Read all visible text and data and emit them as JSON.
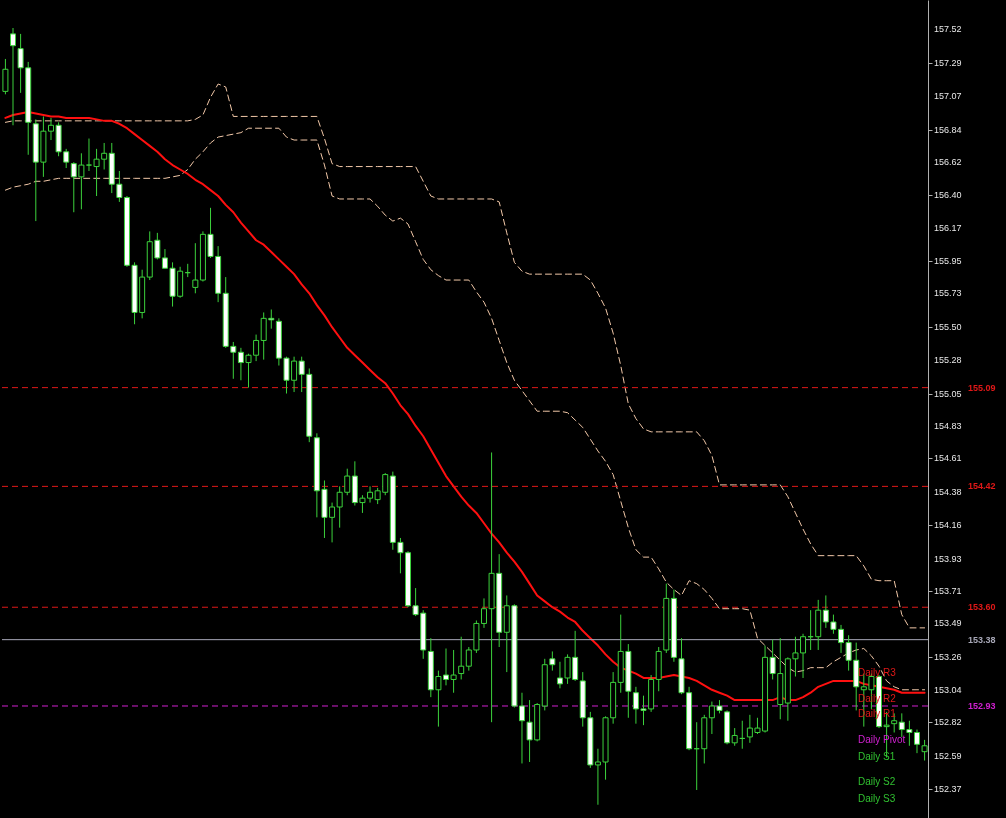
{
  "chart_data": {
    "type": "candlestick",
    "categories": [
      null,
      null,
      null,
      null,
      null,
      null,
      null,
      null,
      null,
      null,
      null,
      null,
      null,
      null,
      null,
      null,
      null,
      null,
      null,
      null,
      null,
      null,
      null,
      null,
      null,
      null,
      null,
      null,
      null,
      null,
      null,
      null,
      null,
      null,
      null,
      null,
      null,
      null,
      null,
      null,
      null,
      null,
      null,
      null,
      null,
      null,
      null,
      null,
      null,
      null,
      null,
      null,
      null,
      null,
      null,
      null,
      null,
      null,
      null,
      null,
      null,
      null,
      null,
      null,
      null,
      null,
      null,
      null,
      null,
      null,
      null,
      null,
      null,
      null,
      null,
      null,
      null,
      null,
      null,
      null,
      null,
      null,
      null,
      null,
      null,
      null,
      null,
      null,
      null,
      null,
      null,
      null,
      null,
      null,
      null,
      null,
      null,
      null,
      null,
      null,
      null,
      null,
      null,
      null,
      null,
      null,
      null,
      null,
      null,
      null,
      null,
      null,
      null,
      null,
      null,
      null,
      null,
      null,
      null,
      null,
      null,
      null
    ],
    "tick_labels": "y",
    "color": "#3cd23c",
    "ohlc": [
      [
        157.1,
        157.32,
        157.08,
        157.25
      ],
      [
        157.49,
        157.53,
        156.87,
        157.41
      ],
      [
        157.39,
        157.49,
        157.09,
        157.26
      ],
      [
        157.26,
        157.3,
        156.67,
        156.89
      ],
      [
        156.88,
        156.91,
        156.22,
        156.62
      ],
      [
        156.62,
        156.93,
        156.52,
        156.83
      ],
      [
        156.83,
        156.92,
        156.77,
        156.87
      ],
      [
        156.87,
        156.89,
        156.66,
        156.69
      ],
      [
        156.69,
        156.71,
        156.58,
        156.62
      ],
      [
        156.61,
        156.62,
        156.28,
        156.52
      ],
      [
        156.52,
        156.68,
        156.3,
        156.6
      ],
      [
        156.6,
        156.78,
        156.56,
        156.6
      ],
      [
        156.59,
        156.71,
        156.39,
        156.64
      ],
      [
        156.64,
        156.75,
        156.57,
        156.68
      ],
      [
        156.68,
        156.75,
        156.41,
        156.47
      ],
      [
        156.47,
        156.56,
        156.35,
        156.38
      ],
      [
        156.38,
        156.39,
        155.91,
        155.92
      ],
      [
        155.92,
        155.94,
        155.52,
        155.6
      ],
      [
        155.6,
        155.89,
        155.56,
        155.84
      ],
      [
        155.84,
        156.15,
        155.82,
        156.08
      ],
      [
        156.09,
        156.14,
        155.96,
        155.97
      ],
      [
        155.97,
        156.03,
        155.9,
        155.9
      ],
      [
        155.9,
        155.94,
        155.64,
        155.71
      ],
      [
        155.71,
        155.91,
        155.7,
        155.88
      ],
      [
        155.87,
        155.93,
        155.84,
        155.87
      ],
      [
        155.77,
        156.07,
        155.73,
        155.82
      ],
      [
        155.82,
        156.15,
        155.81,
        156.13
      ],
      [
        156.13,
        156.31,
        155.97,
        155.98
      ],
      [
        155.98,
        156.05,
        155.67,
        155.73
      ],
      [
        155.73,
        155.84,
        155.36,
        155.37
      ],
      [
        155.37,
        155.4,
        155.15,
        155.33
      ],
      [
        155.33,
        155.36,
        155.14,
        155.26
      ],
      [
        155.26,
        155.32,
        155.09,
        155.31
      ],
      [
        155.31,
        155.45,
        155.27,
        155.41
      ],
      [
        155.41,
        155.6,
        155.28,
        155.56
      ],
      [
        155.56,
        155.62,
        155.49,
        155.55
      ],
      [
        155.54,
        155.56,
        155.24,
        155.29
      ],
      [
        155.29,
        155.3,
        155.05,
        155.14
      ],
      [
        155.14,
        155.3,
        155.06,
        155.27
      ],
      [
        155.27,
        155.3,
        155.06,
        155.18
      ],
      [
        155.18,
        155.22,
        154.72,
        154.76
      ],
      [
        154.75,
        154.78,
        154.21,
        154.39
      ],
      [
        154.4,
        154.46,
        154.07,
        154.21
      ],
      [
        154.21,
        154.31,
        154.04,
        154.28
      ],
      [
        154.28,
        154.42,
        154.14,
        154.38
      ],
      [
        154.38,
        154.54,
        154.36,
        154.49
      ],
      [
        154.49,
        154.59,
        154.29,
        154.31
      ],
      [
        154.31,
        154.36,
        154.24,
        154.34
      ],
      [
        154.34,
        154.42,
        154.31,
        154.38
      ],
      [
        154.33,
        154.41,
        154.3,
        154.39
      ],
      [
        154.38,
        154.51,
        154.36,
        154.5
      ],
      [
        154.49,
        154.52,
        153.99,
        154.04
      ],
      [
        154.04,
        154.07,
        153.83,
        153.97
      ],
      [
        153.97,
        153.98,
        153.6,
        153.61
      ],
      [
        153.61,
        153.73,
        153.54,
        153.55
      ],
      [
        153.56,
        153.58,
        153.25,
        153.31
      ],
      [
        153.3,
        153.39,
        152.99,
        153.04
      ],
      [
        153.04,
        153.17,
        152.79,
        153.13
      ],
      [
        153.14,
        153.32,
        153.07,
        153.11
      ],
      [
        153.11,
        153.31,
        153.02,
        153.14
      ],
      [
        153.15,
        153.4,
        153.11,
        153.2
      ],
      [
        153.2,
        153.33,
        153.17,
        153.31
      ],
      [
        153.31,
        153.51,
        153.29,
        153.49
      ],
      [
        153.49,
        153.66,
        153.46,
        153.59
      ],
      [
        153.59,
        154.65,
        152.82,
        153.83
      ],
      [
        153.83,
        153.96,
        153.33,
        153.43
      ],
      [
        153.43,
        153.68,
        153.16,
        153.61
      ],
      [
        153.61,
        153.62,
        152.92,
        152.93
      ],
      [
        152.93,
        153.02,
        152.54,
        152.83
      ],
      [
        152.82,
        152.97,
        152.55,
        152.7
      ],
      [
        152.7,
        152.95,
        152.69,
        152.94
      ],
      [
        152.93,
        153.25,
        152.9,
        153.21
      ],
      [
        153.25,
        153.3,
        153.17,
        153.21
      ],
      [
        153.12,
        153.23,
        153.05,
        153.08
      ],
      [
        153.12,
        153.28,
        153.08,
        153.26
      ],
      [
        153.26,
        153.44,
        153.1,
        153.11
      ],
      [
        153.1,
        153.16,
        152.79,
        152.85
      ],
      [
        152.85,
        152.89,
        152.51,
        152.53
      ],
      [
        152.53,
        152.64,
        152.26,
        152.55
      ],
      [
        152.55,
        152.86,
        152.43,
        152.85
      ],
      [
        152.85,
        153.16,
        152.81,
        153.09
      ],
      [
        153.09,
        153.55,
        153.02,
        153.3
      ],
      [
        153.3,
        153.35,
        152.85,
        153.03
      ],
      [
        153.02,
        153.06,
        152.81,
        152.91
      ],
      [
        152.91,
        153.0,
        152.8,
        152.9
      ],
      [
        152.91,
        153.14,
        152.89,
        153.11
      ],
      [
        153.11,
        153.33,
        153.03,
        153.3
      ],
      [
        153.31,
        153.76,
        153.29,
        153.66
      ],
      [
        153.66,
        153.72,
        153.23,
        153.26
      ],
      [
        153.25,
        153.39,
        153.01,
        153.02
      ],
      [
        153.02,
        153.06,
        152.63,
        152.64
      ],
      [
        152.64,
        152.82,
        152.36,
        152.64
      ],
      [
        152.64,
        152.87,
        152.54,
        152.85
      ],
      [
        152.85,
        152.96,
        152.74,
        152.93
      ],
      [
        152.93,
        152.97,
        152.88,
        152.9
      ],
      [
        152.89,
        152.9,
        152.67,
        152.68
      ],
      [
        152.68,
        152.78,
        152.66,
        152.73
      ],
      [
        152.71,
        152.83,
        152.64,
        152.71
      ],
      [
        152.72,
        152.87,
        152.68,
        152.78
      ],
      [
        152.75,
        152.85,
        152.74,
        152.78
      ],
      [
        152.76,
        153.34,
        152.75,
        153.26
      ],
      [
        153.26,
        153.38,
        153.11,
        153.15
      ],
      [
        152.94,
        153.39,
        152.84,
        153.15
      ],
      [
        152.95,
        153.26,
        152.83,
        153.25
      ],
      [
        153.25,
        153.4,
        153.13,
        153.29
      ],
      [
        153.29,
        153.42,
        153.12,
        153.4
      ],
      [
        153.4,
        153.58,
        153.31,
        153.4
      ],
      [
        153.4,
        153.65,
        153.31,
        153.58
      ],
      [
        153.58,
        153.68,
        153.46,
        153.5
      ],
      [
        153.5,
        153.55,
        153.42,
        153.45
      ],
      [
        153.45,
        153.48,
        153.29,
        153.36
      ],
      [
        153.36,
        153.41,
        153.17,
        153.24
      ],
      [
        153.24,
        153.36,
        152.9,
        153.06
      ],
      [
        153.04,
        153.15,
        152.79,
        153.06
      ],
      [
        153.04,
        153.15,
        152.91,
        153.13
      ],
      [
        153.13,
        153.14,
        152.78,
        152.79
      ],
      [
        152.79,
        152.89,
        152.58,
        152.8
      ],
      [
        152.81,
        152.88,
        152.75,
        152.83
      ],
      [
        152.82,
        152.88,
        152.72,
        152.77
      ],
      [
        152.77,
        152.83,
        152.66,
        152.75
      ],
      [
        152.75,
        152.77,
        152.61,
        152.67
      ],
      [
        152.62,
        152.7,
        152.56,
        152.66
      ]
    ],
    "series": [
      {
        "type": "line",
        "color": "#f2c8a8",
        "line_style": "dashed",
        "values": [
          156.89,
          156.9,
          156.9,
          156.9,
          156.9,
          156.9,
          156.9,
          156.9,
          156.9,
          156.9,
          156.9,
          156.9,
          156.9,
          156.9,
          156.9,
          156.9,
          156.9,
          156.9,
          156.9,
          156.9,
          156.9,
          156.9,
          156.9,
          156.9,
          156.9,
          156.91,
          156.94,
          157.06,
          157.15,
          157.13,
          156.93,
          156.93,
          156.93,
          156.93,
          156.93,
          156.93,
          156.93,
          156.93,
          156.93,
          156.93,
          156.93,
          156.93,
          156.78,
          156.61,
          156.59,
          156.59,
          156.59,
          156.59,
          156.59,
          156.59,
          156.59,
          156.59,
          156.59,
          156.59,
          156.59,
          156.49,
          156.39,
          156.37,
          156.37,
          156.37,
          156.37,
          156.37,
          156.37,
          156.37,
          156.37,
          156.35,
          156.14,
          155.94,
          155.88,
          155.86,
          155.86,
          155.86,
          155.86,
          155.86,
          155.86,
          155.86,
          155.86,
          155.82,
          155.73,
          155.63,
          155.46,
          155.24,
          154.98,
          154.88,
          154.81,
          154.79,
          154.79,
          154.79,
          154.79,
          154.79,
          154.79,
          154.79,
          154.73,
          154.63,
          154.43,
          154.43,
          154.43,
          154.43,
          154.43,
          154.43,
          154.43,
          154.43,
          154.43,
          154.35,
          154.24,
          154.13,
          154.03,
          153.95,
          153.95,
          153.95,
          153.95,
          153.95,
          153.95,
          153.88,
          153.79,
          153.78,
          153.78,
          153.78,
          153.55,
          153.46,
          153.46,
          153.46
        ]
      },
      {
        "type": "line",
        "color": "#f2c8a8",
        "line_style": "dashed",
        "values": [
          156.43,
          156.45,
          156.46,
          156.47,
          156.49,
          156.49,
          156.5,
          156.51,
          156.51,
          156.51,
          156.51,
          156.51,
          156.51,
          156.51,
          156.51,
          156.51,
          156.51,
          156.51,
          156.51,
          156.51,
          156.51,
          156.51,
          156.52,
          156.53,
          156.57,
          156.64,
          156.69,
          156.75,
          156.79,
          156.8,
          156.81,
          156.82,
          156.85,
          156.85,
          156.85,
          156.85,
          156.85,
          156.79,
          156.77,
          156.77,
          156.77,
          156.77,
          156.6,
          156.39,
          156.37,
          156.37,
          156.37,
          156.37,
          156.37,
          156.32,
          156.26,
          156.22,
          156.24,
          156.2,
          156.08,
          155.96,
          155.89,
          155.85,
          155.82,
          155.82,
          155.82,
          155.82,
          155.74,
          155.67,
          155.56,
          155.41,
          155.26,
          155.14,
          155.07,
          155.0,
          154.93,
          154.93,
          154.93,
          154.93,
          154.92,
          154.87,
          154.82,
          154.74,
          154.66,
          154.59,
          154.5,
          154.32,
          154.14,
          153.99,
          153.94,
          153.94,
          153.86,
          153.77,
          153.72,
          153.68,
          153.78,
          153.76,
          153.72,
          153.66,
          153.59,
          153.59,
          153.59,
          153.59,
          153.58,
          153.39,
          153.34,
          153.29,
          153.24,
          153.19,
          153.16,
          153.17,
          153.19,
          153.19,
          153.19,
          153.23,
          153.26,
          153.29,
          153.31,
          153.32,
          153.27,
          153.2,
          153.1,
          153.06,
          153.04,
          153.04,
          153.04,
          153.04
        ]
      },
      {
        "type": "line",
        "color": "#ff1010",
        "line_style": "solid",
        "values": [
          156.92,
          156.94,
          156.95,
          156.96,
          156.95,
          156.94,
          156.93,
          156.93,
          156.92,
          156.92,
          156.92,
          156.92,
          156.91,
          156.9,
          156.9,
          156.88,
          156.85,
          156.81,
          156.77,
          156.73,
          156.69,
          156.64,
          156.6,
          156.57,
          156.54,
          156.5,
          156.47,
          156.43,
          156.39,
          156.33,
          156.28,
          156.21,
          156.15,
          156.09,
          156.06,
          156.01,
          155.96,
          155.91,
          155.86,
          155.79,
          155.73,
          155.65,
          155.58,
          155.5,
          155.43,
          155.36,
          155.31,
          155.26,
          155.21,
          155.16,
          155.12,
          155.05,
          154.97,
          154.91,
          154.83,
          154.76,
          154.67,
          154.58,
          154.49,
          154.42,
          154.35,
          154.29,
          154.24,
          154.17,
          154.1,
          154.04,
          153.97,
          153.91,
          153.84,
          153.76,
          153.68,
          153.64,
          153.6,
          153.57,
          153.53,
          153.5,
          153.44,
          153.39,
          153.34,
          153.28,
          153.23,
          153.19,
          153.17,
          153.15,
          153.12,
          153.12,
          153.12,
          153.13,
          153.14,
          153.13,
          153.12,
          153.1,
          153.07,
          153.04,
          153.02,
          153.0,
          152.97,
          152.97,
          152.97,
          152.97,
          152.97,
          152.97,
          152.99,
          152.97,
          152.97,
          152.99,
          153.02,
          153.06,
          153.08,
          153.1,
          153.1,
          153.1,
          153.1,
          153.08,
          153.07,
          153.06,
          153.05,
          153.04,
          153.02,
          153.02,
          153.02,
          153.02
        ]
      }
    ],
    "ylim": [
      152.17,
      157.72
    ],
    "yticks": [
      152.37,
      152.59,
      152.82,
      153.04,
      153.26,
      153.49,
      153.71,
      153.93,
      154.16,
      154.38,
      154.61,
      154.83,
      155.05,
      155.28,
      {
        "value": 155.5,
        "label": "155.50"
      },
      155.73,
      155.95,
      156.17,
      {
        "value": 156.4,
        "label": "156.40"
      },
      156.62,
      156.84,
      157.07,
      157.29,
      157.52
    ],
    "ref_lines": [
      {
        "axis": "y",
        "value": 155.09,
        "label": "155.09",
        "color": "#e01818",
        "line_style": "dashed"
      },
      {
        "axis": "y",
        "value": 154.42,
        "label": "154.42",
        "color": "#e01818",
        "line_style": "dashed"
      },
      {
        "axis": "y",
        "value": 153.6,
        "label": "153.60",
        "color": "#e01818",
        "line_style": "dashed"
      },
      {
        "axis": "y",
        "value": 153.38,
        "label": "153.38",
        "color": "#a8a8b8",
        "line_style": "solid"
      },
      {
        "axis": "y",
        "value": 152.93,
        "label": "152.93",
        "color": "#d020d0",
        "line_style": "dashed"
      }
    ],
    "annotations": [
      "Daily R3",
      "Daily R2",
      "Daily R1",
      "Daily Pivot",
      "Daily S1",
      "Daily S2",
      "Daily S3"
    ]
  }
}
